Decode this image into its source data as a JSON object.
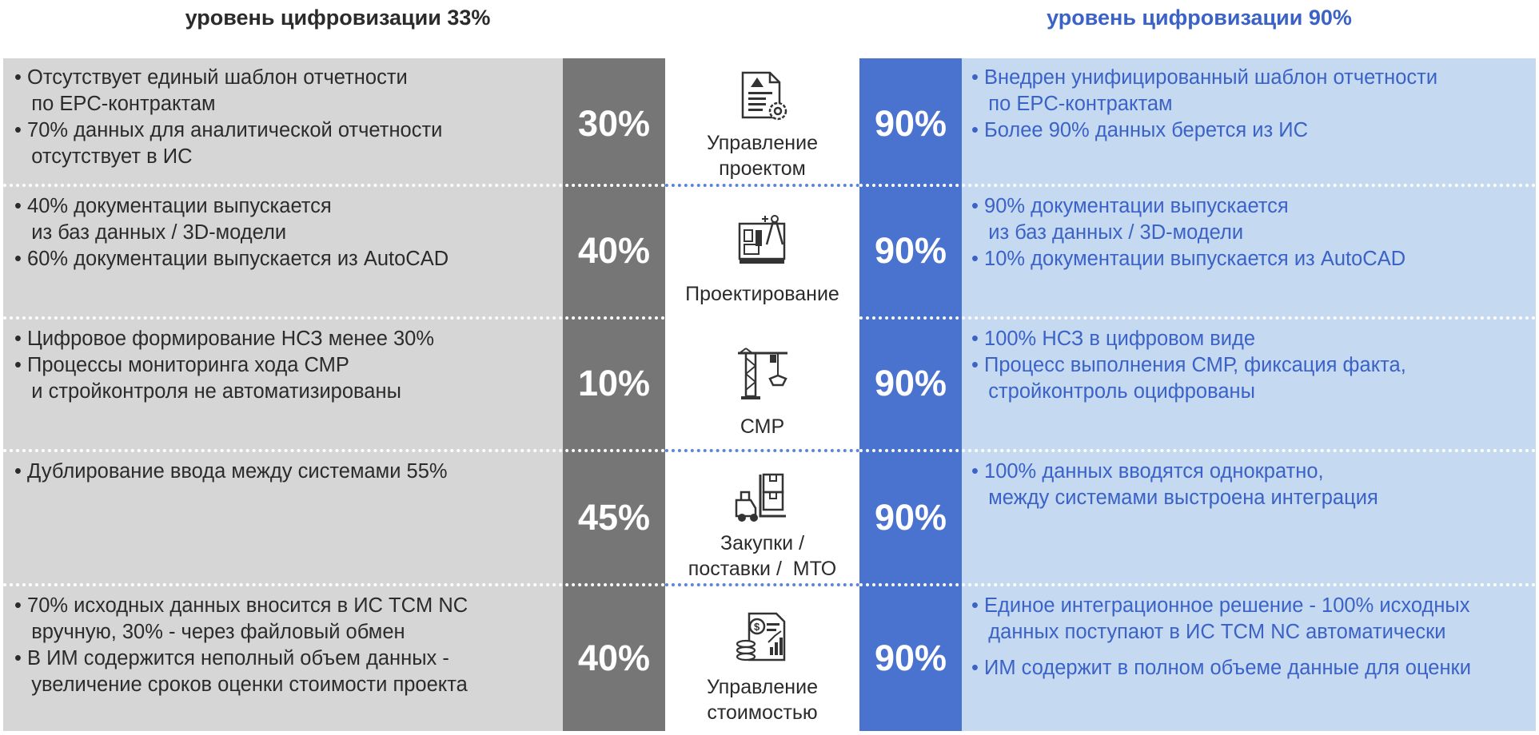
{
  "header": {
    "left_title": "уровень цифровизации 33%",
    "right_title": "уровень цифровизации 90%"
  },
  "rows": [
    {
      "left_lines": [
        "• Отсутствует единый шаблон отчетности",
        "   по EPC-контрактам",
        "• 70% данных для аналитической отчетности",
        "   отсутствует в ИС"
      ],
      "left_pct": "30%",
      "label_lines": [
        "Управление",
        "проектом"
      ],
      "icon": "document-gear-icon",
      "right_pct": "90%",
      "right_lines": [
        "• Внедрен унифицированный шаблон отчетности",
        "   по EPC-контрактам",
        "• Более 90% данных берется из ИС"
      ]
    },
    {
      "left_lines": [
        "• 40% документации выпускается",
        "   из баз данных / 3D-модели",
        "• 60% документации выпускается из AutoCAD"
      ],
      "left_pct": "40%",
      "label_lines": [
        "Проектирование"
      ],
      "icon": "blueprint-compass-icon",
      "right_pct": "90%",
      "right_lines": [
        "• 90% документации выпускается",
        "   из баз данных / 3D-модели",
        "• 10% документации выпускается из AutoCAD"
      ]
    },
    {
      "left_lines": [
        "• Цифровое формирование НСЗ менее 30%",
        "• Процессы мониторинга хода СМР",
        "   и стройконтроля не автоматизированы"
      ],
      "left_pct": "10%",
      "label_lines": [
        "СМР"
      ],
      "icon": "tower-crane-icon",
      "right_pct": "90%",
      "right_lines": [
        "• 100% НСЗ в цифровом виде",
        "• Процесс выполнения СМР, фиксация факта,",
        "   стройконтроль оцифрованы"
      ]
    },
    {
      "left_lines": [
        "• Дублирование ввода между системами 55%"
      ],
      "left_pct": "45%",
      "label_lines": [
        "Закупки /",
        "поставки /  МТО"
      ],
      "icon": "forklift-boxes-icon",
      "right_pct": "90%",
      "right_lines": [
        "• 100% данных вводятся однократно,",
        "   между системами выстроена интеграция"
      ]
    },
    {
      "left_lines": [
        "• 70% исходных данных вносится в ИС TCM NC",
        "   вручную, 30% - через файловый обмен",
        "• В ИМ содержится неполный объем данных -",
        "   увеличение сроков оценки стоимости проекта"
      ],
      "left_pct": "40%",
      "label_lines": [
        "Управление",
        "стоимостью"
      ],
      "icon": "cost-report-icon",
      "right_pct": "90%",
      "right_lines": [
        "• Единое интеграционное решение - 100% исходных",
        "   данных поступают в ИС TCM NC автоматически",
        "• ИМ содержит в полном объеме данные для оценки"
      ]
    }
  ]
}
